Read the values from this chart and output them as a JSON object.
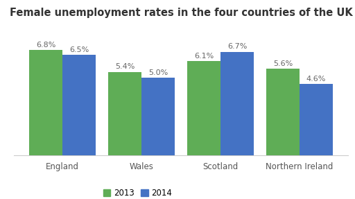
{
  "title": "Female unemployment rates in the four countries of the UK",
  "categories": [
    "England",
    "Wales",
    "Scotland",
    "Northern Ireland"
  ],
  "values_2013": [
    6.8,
    5.4,
    6.1,
    5.6
  ],
  "values_2014": [
    6.5,
    5.0,
    6.7,
    4.6
  ],
  "labels_2013": [
    "6.8%",
    "5.4%",
    "6.1%",
    "5.6%"
  ],
  "labels_2014": [
    "6.5%",
    "5.0%",
    "6.7%",
    "4.6%"
  ],
  "color_2013": "#5fad56",
  "color_2014": "#4472c4",
  "background_color": "#ffffff",
  "ylim": [
    0,
    8.5
  ],
  "bar_width": 0.42,
  "legend_2013": "2013",
  "legend_2014": "2014",
  "title_fontsize": 10.5,
  "label_fontsize": 8,
  "tick_fontsize": 8.5,
  "label_color": "#666666"
}
